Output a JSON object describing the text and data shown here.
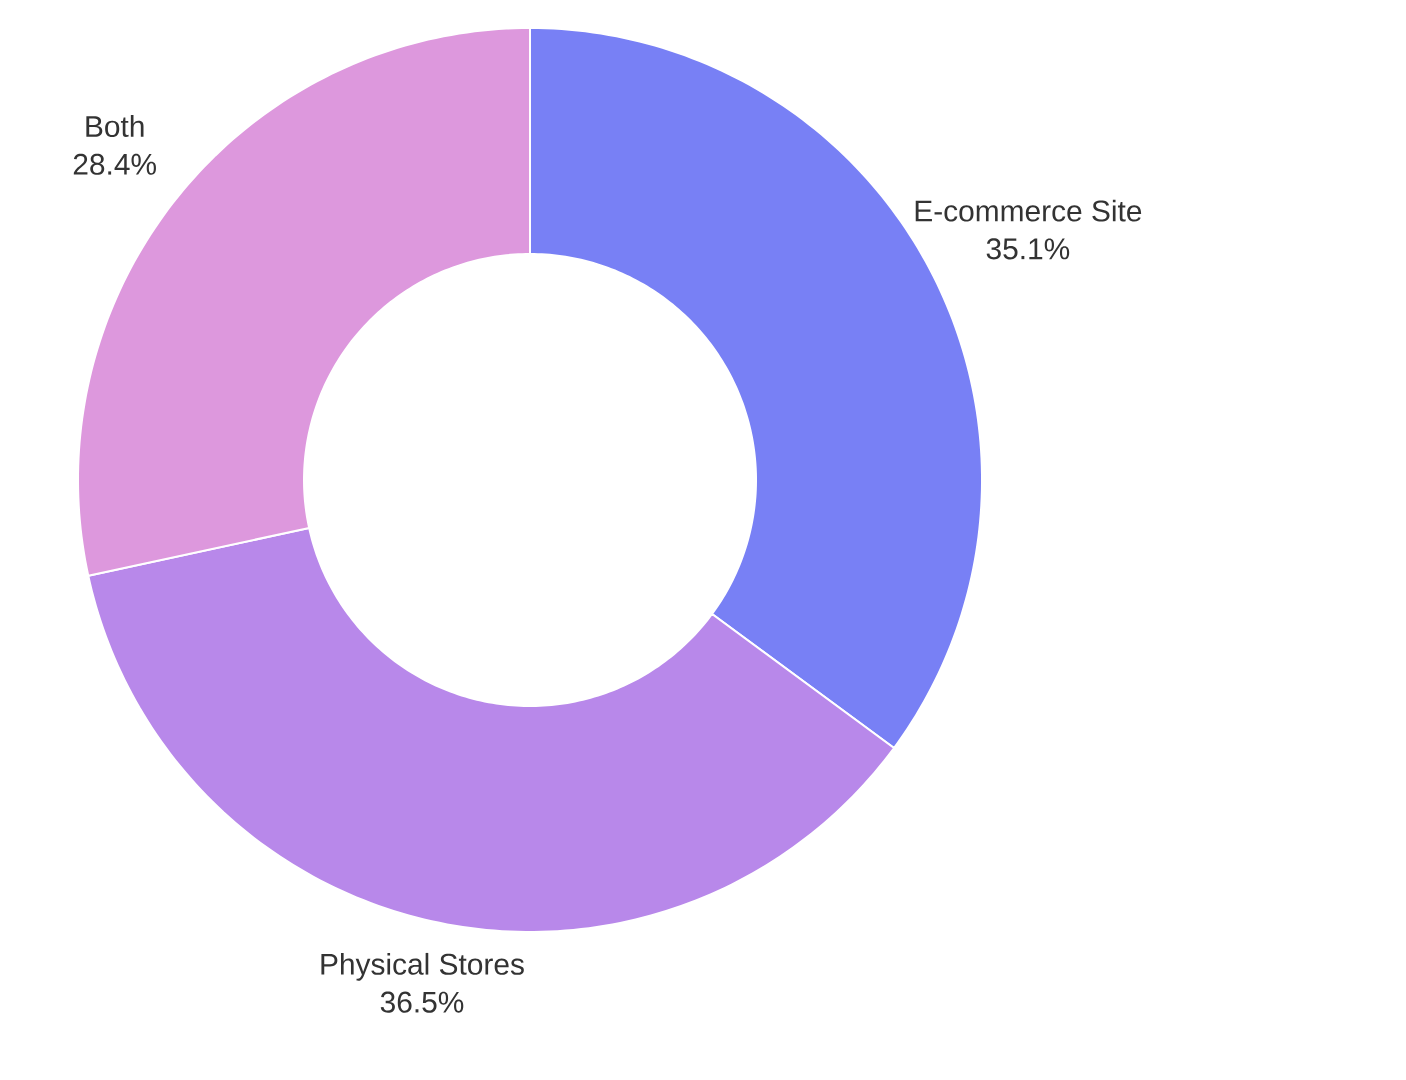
{
  "chart_data": {
    "type": "donut",
    "categories": [
      "E-commerce Site",
      "Physical Stores",
      "Both"
    ],
    "values": [
      35.1,
      36.5,
      28.4
    ],
    "colors": [
      "#7880f5",
      "#b888ea",
      "#dd98dd"
    ],
    "value_labels": [
      "35.1%",
      "36.5%",
      "28.4%"
    ]
  }
}
